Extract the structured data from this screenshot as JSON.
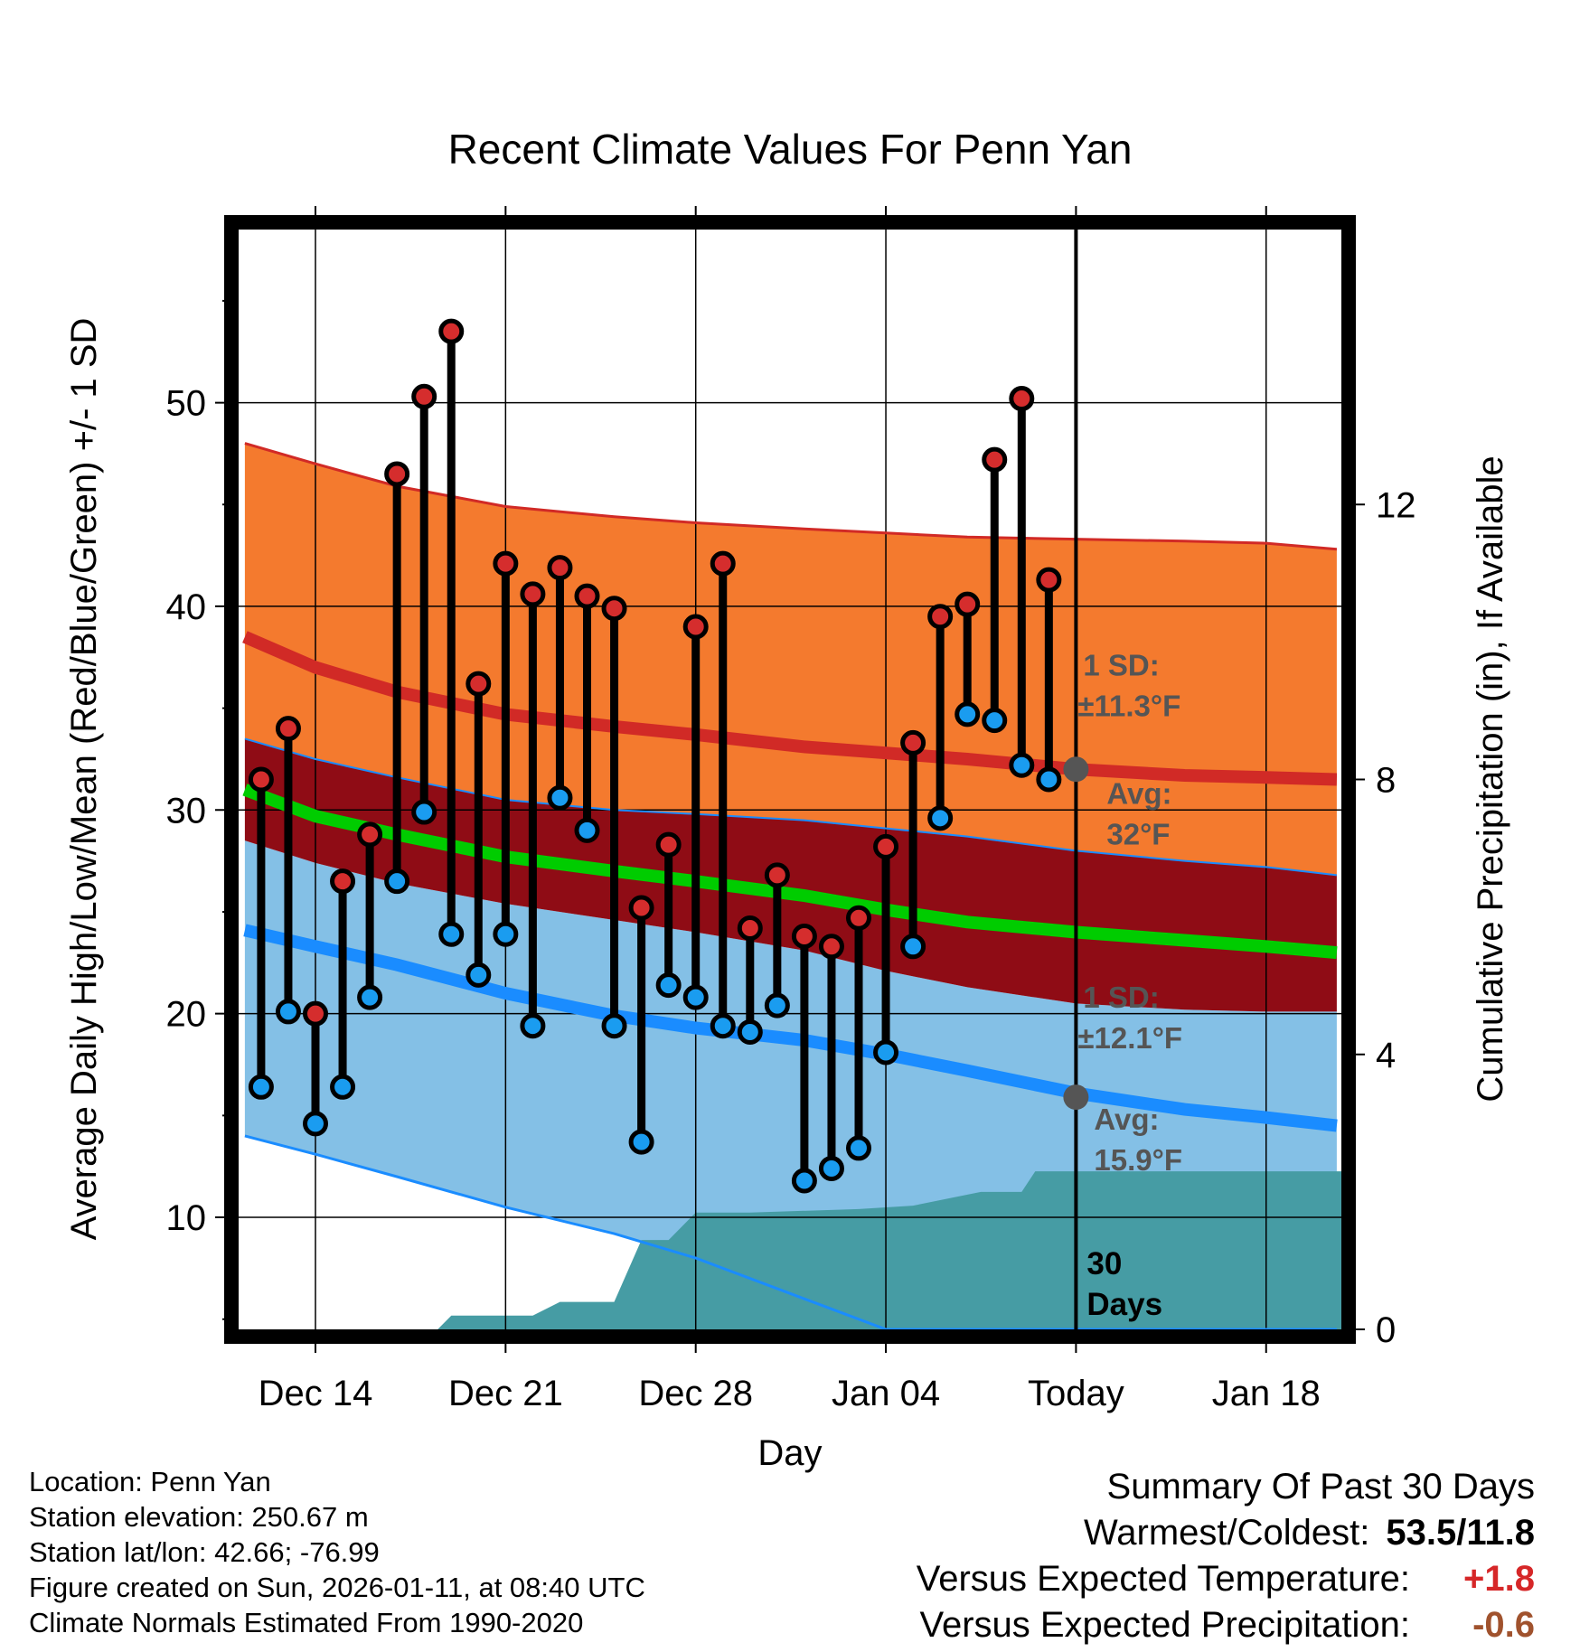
{
  "title": "Recent Climate Values For Penn Yan",
  "y_left_label": "Average Daily High/Low/Mean (Red/Blue/Green) +/- 1 SD",
  "y_right_label": "Cumulative Precipitation (in), If Available",
  "x_label": "Day",
  "x_ticks": [
    "Dec 14",
    "Dec 21",
    "Dec 28",
    "Jan 04",
    "Today",
    "Jan 18"
  ],
  "annotations": {
    "high_sd": [
      "1 SD:",
      "±11.3°F"
    ],
    "high_avg": [
      "Avg:",
      "32°F"
    ],
    "low_sd": [
      "1 SD:",
      "±12.1°F"
    ],
    "low_avg": [
      "Avg:",
      "15.9°F"
    ],
    "window": [
      "30",
      "Days"
    ]
  },
  "colors": {
    "high_band": "#f47a2e",
    "overlap_band": "#8f0c15",
    "low_band": "#84c0e6",
    "normal_high": "#d12a26",
    "normal_low": "#1a8cff",
    "normal_mean": "#00cc00",
    "precip": "#469ca4",
    "high_dot": "#d52d2d",
    "low_dot": "#1a9cf0",
    "avg_dot": "#555555",
    "warm": "#d62728",
    "dry": "#a0522d"
  },
  "info": [
    "Location: Penn Yan",
    "Station elevation: 250.67 m",
    "Station lat/lon: 42.66; -76.99",
    "Figure created on Sun, 2026-01-11, at 08:40 UTC",
    "Climate Normals Estimated From 1990-2020"
  ],
  "summary": {
    "heading": "Summary Of Past 30 Days",
    "warm_cold_label": "Warmest/Coldest:",
    "warm_cold_value": "53.5/11.8",
    "temp_label": "Versus Expected Temperature:",
    "temp_value": "+1.8",
    "precip_label": "Versus Expected Precipitation:",
    "precip_value": "-0.6"
  },
  "chart_data": {
    "type": "line",
    "title": "Recent Climate Values For Penn Yan",
    "xlabel": "Day",
    "ylabel": "Average Daily High/Low/Mean (Red/Blue/Green) +/- 1 SD",
    "y2label": "Cumulative Precipitation (in), If Available",
    "xlim": [
      -3.1,
      38.1
    ],
    "ylim": [
      4.5,
      58.5
    ],
    "y2lim": [
      0,
      16
    ],
    "yticks": [
      10,
      20,
      30,
      40,
      50
    ],
    "y2ticks": [
      0,
      4,
      8,
      12
    ],
    "xticks": [
      {
        "x": 0,
        "label": "Dec 14"
      },
      {
        "x": 7,
        "label": "Dec 21"
      },
      {
        "x": 14,
        "label": "Dec 28"
      },
      {
        "x": 21,
        "label": "Jan 04"
      },
      {
        "x": 28,
        "label": "Today"
      },
      {
        "x": 35,
        "label": "Jan 18"
      }
    ],
    "x_day_offset_note": "x = days since Dec 14",
    "observed": {
      "day": [
        -2,
        -1,
        0,
        1,
        2,
        3,
        4,
        5,
        6,
        7,
        8,
        9,
        10,
        11,
        12,
        13,
        14,
        15,
        16,
        17,
        18,
        19,
        20,
        21,
        22,
        23,
        24,
        25,
        26,
        27
      ],
      "high": [
        31.5,
        34.0,
        20.0,
        26.5,
        28.8,
        46.5,
        50.3,
        53.5,
        36.2,
        42.1,
        40.6,
        41.9,
        40.5,
        39.9,
        25.2,
        28.3,
        39.0,
        42.1,
        24.2,
        26.8,
        23.8,
        23.3,
        24.7,
        28.2,
        33.3,
        39.5,
        40.1,
        47.2,
        50.2,
        41.3
      ],
      "low": [
        16.4,
        20.1,
        14.6,
        16.4,
        20.8,
        26.5,
        29.9,
        23.9,
        21.9,
        23.9,
        19.4,
        30.6,
        29.0,
        19.4,
        13.7,
        21.4,
        20.8,
        19.4,
        19.1,
        20.4,
        11.8,
        12.4,
        13.4,
        18.1,
        23.3,
        29.6,
        34.7,
        34.4,
        32.2,
        31.5
      ]
    },
    "normals": {
      "day": [
        -2.6,
        0,
        3,
        7,
        11,
        14,
        18,
        21,
        24,
        28,
        32,
        35,
        37.6
      ],
      "high_upper": [
        48.0,
        47.0,
        45.9,
        44.9,
        44.4,
        44.1,
        43.8,
        43.6,
        43.4,
        43.3,
        43.2,
        43.1,
        42.8
      ],
      "high_mean": [
        38.5,
        37.0,
        35.8,
        34.7,
        34.1,
        33.7,
        33.1,
        32.8,
        32.5,
        32.0,
        31.7,
        31.6,
        31.5
      ],
      "high_lower": [
        33.5,
        32.5,
        31.6,
        30.5,
        30.0,
        29.8,
        29.5,
        29.1,
        28.7,
        28.0,
        27.5,
        27.2,
        26.8
      ],
      "mean": [
        31.0,
        29.7,
        28.8,
        27.7,
        27.0,
        26.5,
        25.8,
        25.1,
        24.5,
        24.0,
        23.6,
        23.3,
        23.0
      ],
      "low_upper": [
        28.5,
        27.4,
        26.4,
        25.4,
        24.6,
        24.0,
        23.1,
        22.1,
        21.3,
        20.5,
        20.2,
        20.1,
        20.1
      ],
      "low_mean": [
        24.1,
        23.3,
        22.4,
        21.0,
        19.9,
        19.3,
        18.7,
        18.0,
        17.2,
        16.1,
        15.3,
        14.9,
        14.5
      ],
      "low_lower": [
        14.0,
        13.1,
        12.0,
        10.5,
        9.2,
        8.0,
        6.0,
        4.5,
        4.5,
        4.5,
        4.5,
        4.5,
        4.5
      ]
    },
    "precip_cumulative": {
      "day": [
        -3.1,
        4.5,
        5.0,
        8.0,
        9.0,
        11.0,
        12.0,
        13.0,
        14.0,
        15.0,
        16.0,
        20.0,
        22.0,
        24.5,
        25.0,
        26.0,
        26.5,
        27.0,
        38.1
      ],
      "value": [
        0,
        0,
        0.2,
        0.2,
        0.4,
        0.4,
        1.3,
        1.3,
        1.7,
        1.7,
        1.7,
        1.75,
        1.8,
        2.0,
        2.0,
        2.0,
        2.3,
        2.3,
        2.3
      ]
    },
    "today_day": 28,
    "avg_markers": {
      "high": 32,
      "low": 15.9
    }
  }
}
